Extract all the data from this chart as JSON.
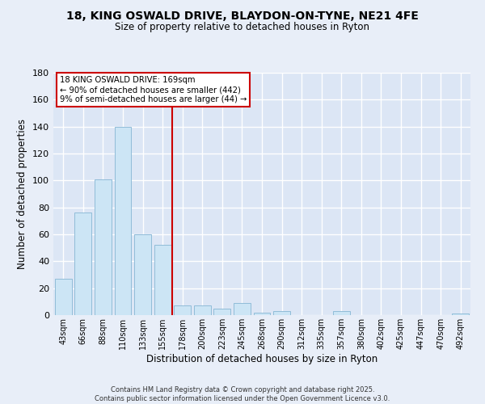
{
  "title": "18, KING OSWALD DRIVE, BLAYDON-ON-TYNE, NE21 4FE",
  "subtitle": "Size of property relative to detached houses in Ryton",
  "xlabel": "Distribution of detached houses by size in Ryton",
  "ylabel": "Number of detached properties",
  "bar_color": "#cce5f5",
  "bar_edge_color": "#90bcd8",
  "categories": [
    "43sqm",
    "66sqm",
    "88sqm",
    "110sqm",
    "133sqm",
    "155sqm",
    "178sqm",
    "200sqm",
    "223sqm",
    "245sqm",
    "268sqm",
    "290sqm",
    "312sqm",
    "335sqm",
    "357sqm",
    "380sqm",
    "402sqm",
    "425sqm",
    "447sqm",
    "470sqm",
    "492sqm"
  ],
  "values": [
    27,
    76,
    101,
    140,
    60,
    52,
    7,
    7,
    5,
    9,
    2,
    3,
    0,
    0,
    3,
    0,
    0,
    0,
    0,
    0,
    1
  ],
  "vline_x": 6,
  "vline_color": "#cc0000",
  "ylim": [
    0,
    180
  ],
  "yticks": [
    0,
    20,
    40,
    60,
    80,
    100,
    120,
    140,
    160,
    180
  ],
  "annotation_title": "18 KING OSWALD DRIVE: 169sqm",
  "annotation_line1": "← 90% of detached houses are smaller (442)",
  "annotation_line2": "9% of semi-detached houses are larger (44) →",
  "footer_line1": "Contains HM Land Registry data © Crown copyright and database right 2025.",
  "footer_line2": "Contains public sector information licensed under the Open Government Licence v3.0.",
  "background_color": "#e8eef8",
  "plot_bg_color": "#dce6f5",
  "grid_color": "#ffffff"
}
